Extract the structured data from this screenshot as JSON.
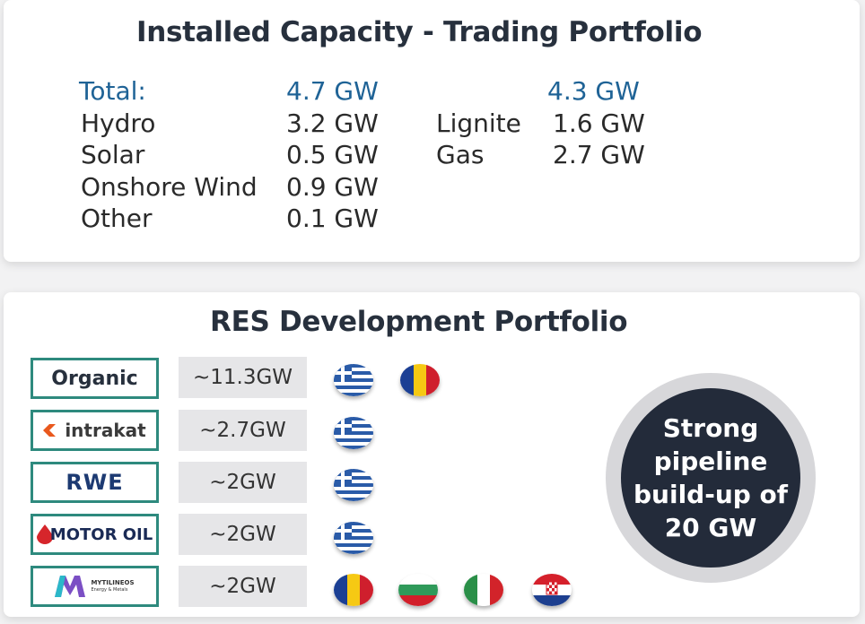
{
  "installed": {
    "title": "Installed Capacity - Trading Portfolio",
    "total_label": "Total:",
    "total_res": "4.7 GW",
    "total_thermal": "4.3 GW",
    "res": [
      {
        "label": "Hydro",
        "value": "3.2 GW"
      },
      {
        "label": "Solar",
        "value": "0.5 GW"
      },
      {
        "label": "Onshore Wind",
        "value": "0.9 GW"
      },
      {
        "label": "Other",
        "value": "0.1 GW"
      }
    ],
    "thermal": [
      {
        "label": "Lignite",
        "value": "1.6 GW"
      },
      {
        "label": "Gas",
        "value": "2.7 GW"
      }
    ]
  },
  "res_dev": {
    "title": "RES Development Portfolio",
    "rows": [
      {
        "partner": "Organic",
        "capacity": "~11.3GW",
        "flags": [
          "greece-flag-icon",
          "romania-flag-icon"
        ]
      },
      {
        "partner": "intrakat",
        "capacity": "~2.7GW",
        "flags": [
          "greece-flag-icon"
        ]
      },
      {
        "partner": "RWE",
        "capacity": "~2GW",
        "flags": [
          "greece-flag-icon"
        ]
      },
      {
        "partner": "MOTOR OIL",
        "capacity": "~2GW",
        "flags": [
          "greece-flag-icon"
        ]
      },
      {
        "partner": "MYTILINEOS",
        "partner_sub": "Energy & Metals",
        "capacity": "~2GW",
        "flags": [
          "romania-flag-icon",
          "bulgaria-flag-icon",
          "italy-flag-icon",
          "croatia-flag-icon"
        ]
      }
    ],
    "callout": "Strong pipeline build-up of 20 GW"
  },
  "colors": {
    "accent_blue": "#1f6396",
    "teal_border": "#2e8a7e",
    "dark_navy": "#232b3a",
    "value_box_gray": "#e6e6e8"
  }
}
